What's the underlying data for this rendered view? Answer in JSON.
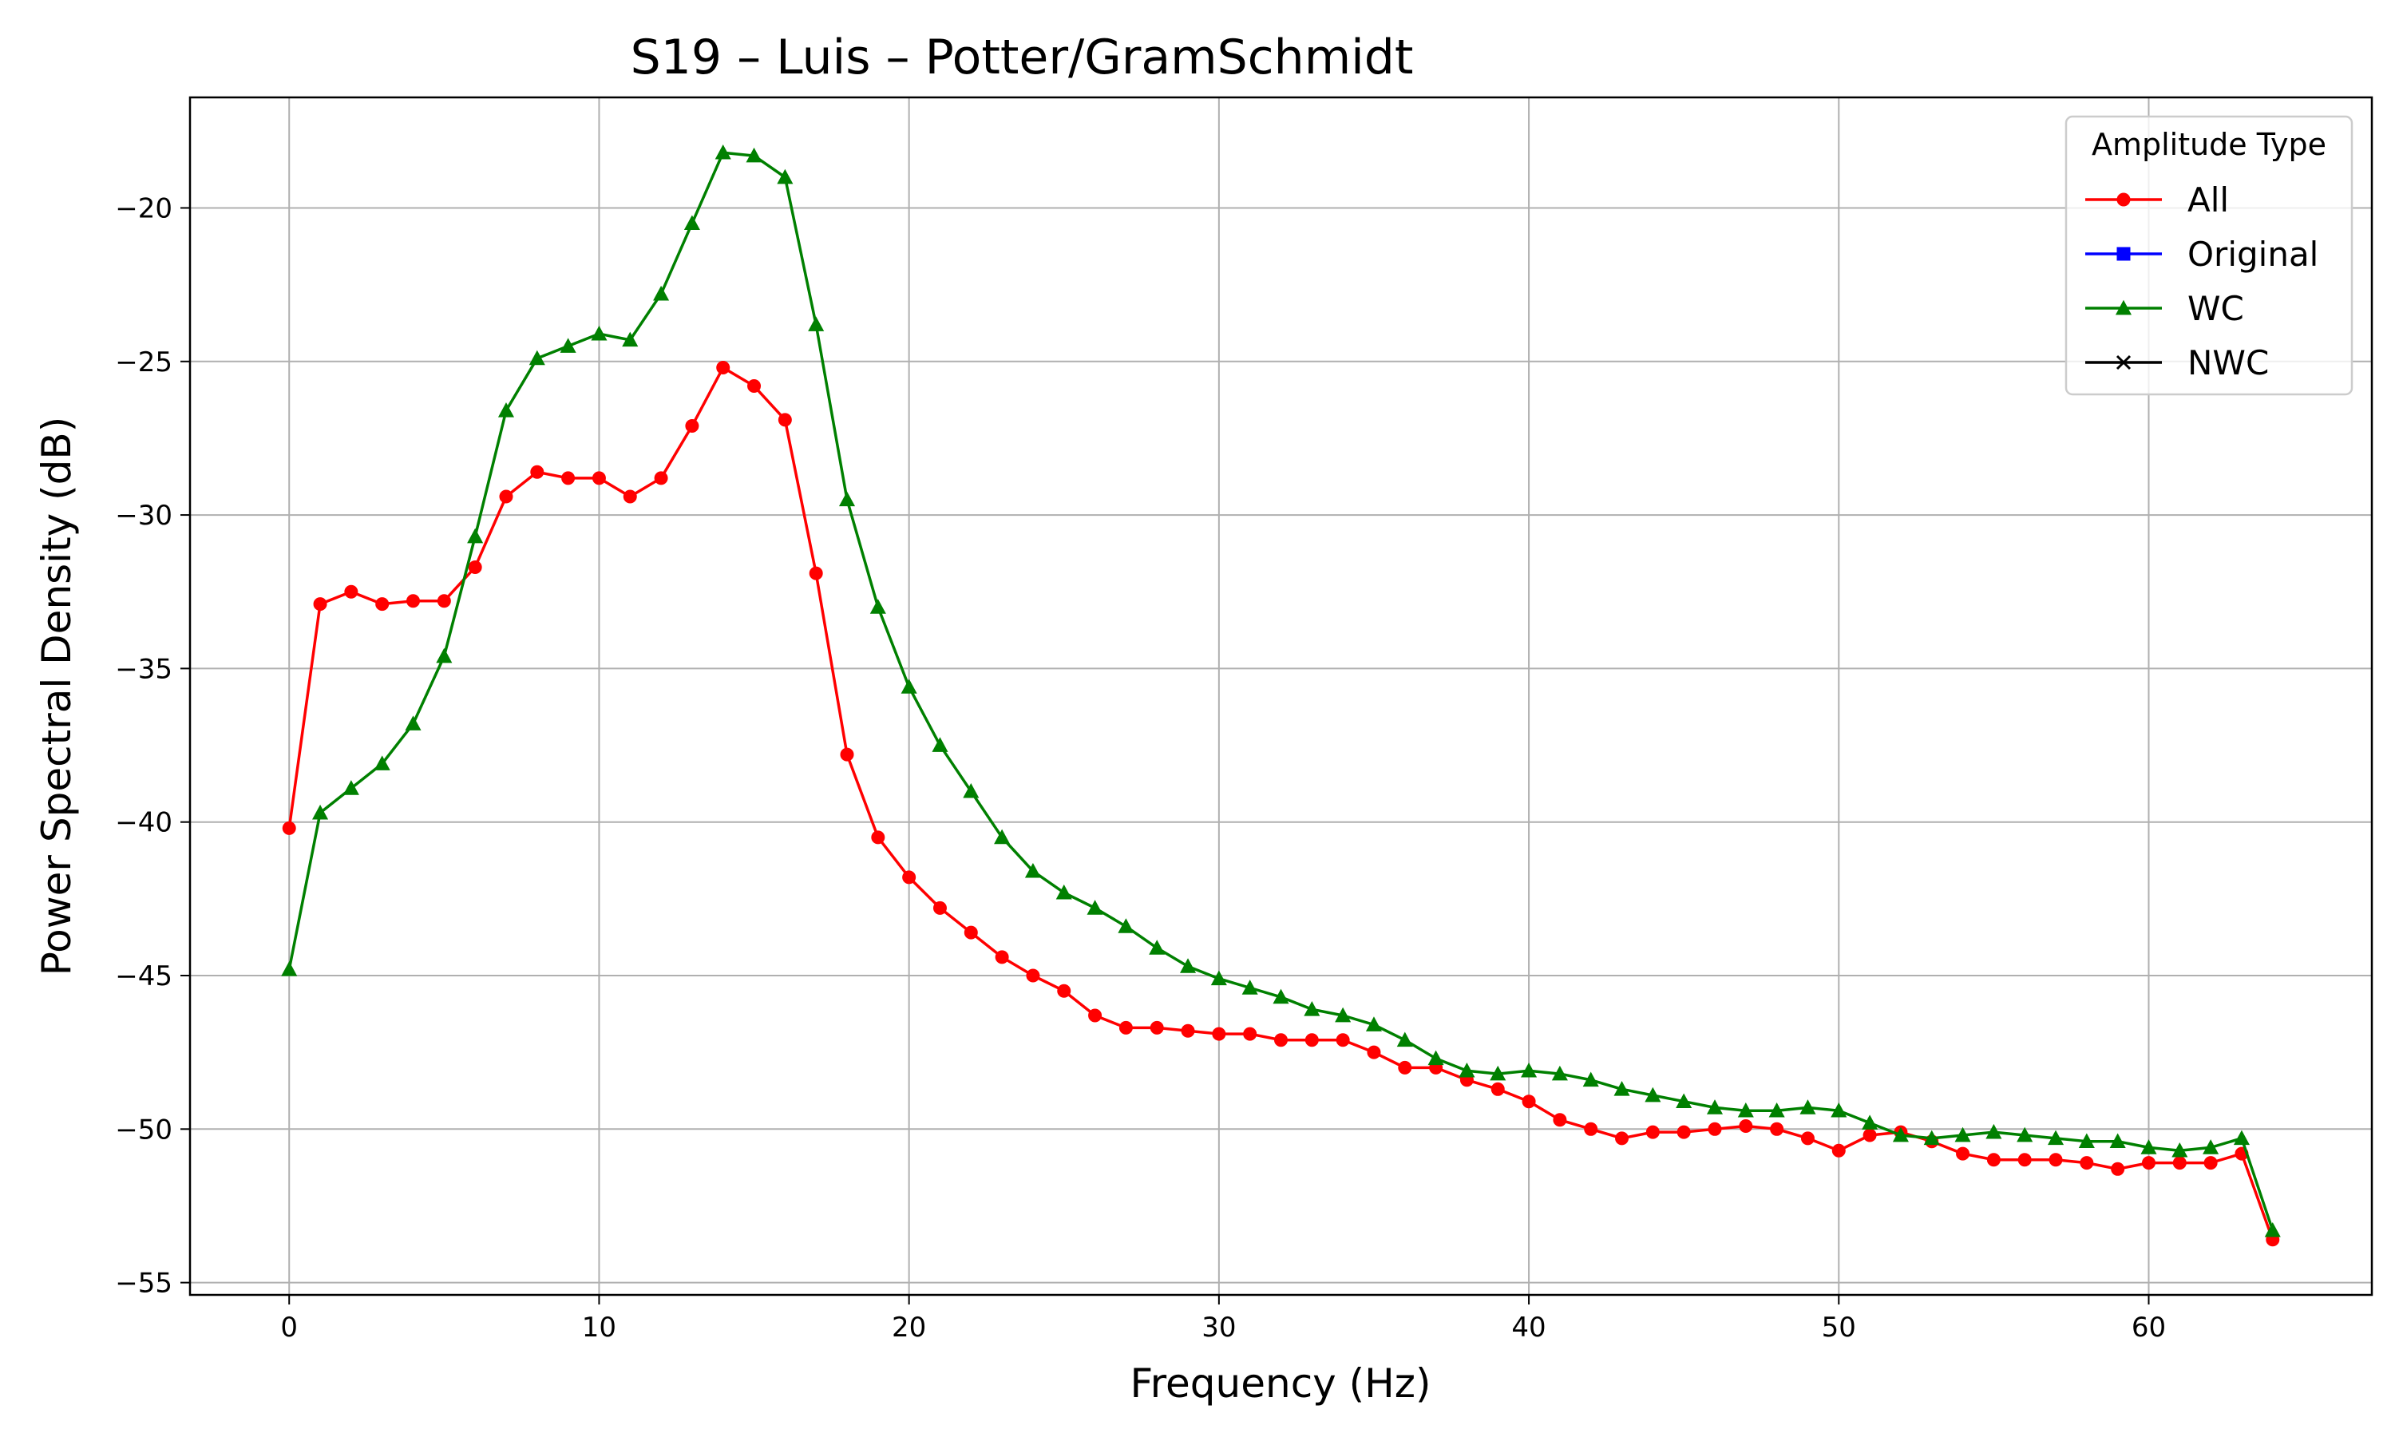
{
  "chart_data": {
    "type": "line",
    "title": "S19 – Luis – Potter/GramSchmidt",
    "xlabel": "Frequency (Hz)",
    "ylabel": "Power Spectral Density (dB)",
    "xlim": [
      -3.2,
      67.2
    ],
    "ylim": [
      -55.4,
      -16.4
    ],
    "xticks": [
      0,
      10,
      20,
      30,
      40,
      50,
      60
    ],
    "yticks": [
      -55,
      -50,
      -45,
      -40,
      -35,
      -30,
      -25,
      -20
    ],
    "xtick_labels": [
      "0",
      "10",
      "20",
      "30",
      "40",
      "50",
      "60"
    ],
    "ytick_labels": [
      "−55",
      "−50",
      "−45",
      "−40",
      "−35",
      "−30",
      "−25",
      "−20"
    ],
    "grid": true,
    "legend": {
      "title": "Amplitude Type",
      "placement": "top-right"
    },
    "series": [
      {
        "name": "All",
        "color": "#ff0000",
        "marker": "circle",
        "x": [
          0,
          1,
          2,
          3,
          4,
          5,
          6,
          7,
          8,
          9,
          10,
          11,
          12,
          13,
          14,
          15,
          16,
          17,
          18,
          19,
          20,
          21,
          22,
          23,
          24,
          25,
          26,
          27,
          28,
          29,
          30,
          31,
          32,
          33,
          34,
          35,
          36,
          37,
          38,
          39,
          40,
          41,
          42,
          43,
          44,
          45,
          46,
          47,
          48,
          49,
          50,
          51,
          52,
          53,
          54,
          55,
          56,
          57,
          58,
          59,
          60,
          61,
          62,
          63,
          64
        ],
        "y": [
          -40.2,
          -32.9,
          -32.5,
          -32.9,
          -32.8,
          -32.8,
          -31.7,
          -29.4,
          -28.6,
          -28.8,
          -28.8,
          -29.4,
          -28.8,
          -27.1,
          -25.2,
          -25.8,
          -26.9,
          -31.9,
          -37.8,
          -40.5,
          -41.8,
          -42.8,
          -43.6,
          -44.4,
          -45.0,
          -45.5,
          -46.3,
          -46.7,
          -46.7,
          -46.8,
          -46.9,
          -46.9,
          -47.1,
          -47.1,
          -47.1,
          -47.5,
          -48.0,
          -48.0,
          -48.4,
          -48.7,
          -49.1,
          -49.7,
          -50.0,
          -50.3,
          -50.1,
          -50.1,
          -50.0,
          -49.9,
          -50.0,
          -50.3,
          -50.7,
          -50.2,
          -50.1,
          -50.4,
          -50.8,
          -51.0,
          -51.0,
          -51.0,
          -51.1,
          -51.3,
          -51.1,
          -51.1,
          -51.1,
          -50.8,
          -53.6
        ]
      },
      {
        "name": "Original",
        "color": "#0000ff",
        "marker": "square",
        "x": [],
        "y": []
      },
      {
        "name": "WC",
        "color": "#008000",
        "marker": "triangle",
        "x": [
          0,
          1,
          2,
          3,
          4,
          5,
          6,
          7,
          8,
          9,
          10,
          11,
          12,
          13,
          14,
          15,
          16,
          17,
          18,
          19,
          20,
          21,
          22,
          23,
          24,
          25,
          26,
          27,
          28,
          29,
          30,
          31,
          32,
          33,
          34,
          35,
          36,
          37,
          38,
          39,
          40,
          41,
          42,
          43,
          44,
          45,
          46,
          47,
          48,
          49,
          50,
          51,
          52,
          53,
          54,
          55,
          56,
          57,
          58,
          59,
          60,
          61,
          62,
          63,
          64
        ],
        "y": [
          -44.8,
          -39.7,
          -38.9,
          -38.1,
          -36.8,
          -34.6,
          -30.7,
          -26.6,
          -24.9,
          -24.5,
          -24.1,
          -24.3,
          -22.8,
          -20.5,
          -18.2,
          -18.3,
          -19.0,
          -23.8,
          -29.5,
          -33.0,
          -35.6,
          -37.5,
          -39.0,
          -40.5,
          -41.6,
          -42.3,
          -42.8,
          -43.4,
          -44.1,
          -44.7,
          -45.1,
          -45.4,
          -45.7,
          -46.1,
          -46.3,
          -46.6,
          -47.1,
          -47.7,
          -48.1,
          -48.2,
          -48.1,
          -48.2,
          -48.4,
          -48.7,
          -48.9,
          -49.1,
          -49.3,
          -49.4,
          -49.4,
          -49.3,
          -49.4,
          -49.8,
          -50.2,
          -50.3,
          -50.2,
          -50.1,
          -50.2,
          -50.3,
          -50.4,
          -50.4,
          -50.6,
          -50.7,
          -50.6,
          -50.3,
          -53.3
        ]
      },
      {
        "name": "NWC",
        "color": "#000000",
        "marker": "x",
        "x": [],
        "y": []
      }
    ]
  }
}
